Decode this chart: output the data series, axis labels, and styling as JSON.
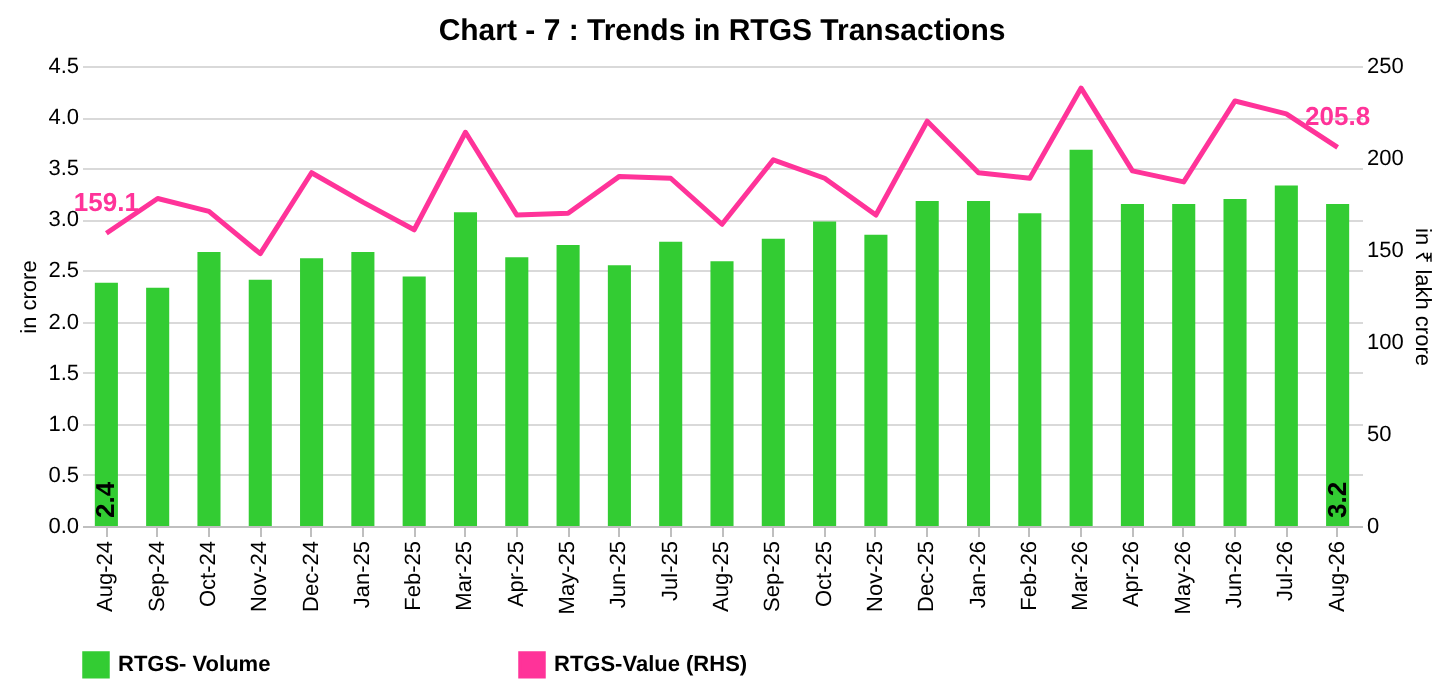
{
  "chart_data": {
    "type": "bar",
    "title": "Chart - 7 : Trends in RTGS Transactions",
    "ylabel": "in crore",
    "y2label": "in ₹ lakh crore",
    "categories": [
      "Aug-24",
      "Sep-24",
      "Oct-24",
      "Nov-24",
      "Dec-24",
      "Jan-25",
      "Feb-25",
      "Mar-25",
      "Apr-25",
      "May-25",
      "Jun-25",
      "Jul-25",
      "Aug-25",
      "Sep-25",
      "Oct-25",
      "Nov-25",
      "Dec-25",
      "Jan-26",
      "Feb-26",
      "Mar-26",
      "Apr-26",
      "May-26",
      "Jun-26",
      "Jul-26",
      "Aug-26"
    ],
    "series": [
      {
        "name": "RTGS- Volume",
        "color": "#33cc33",
        "values": [
          2.38,
          2.33,
          2.68,
          2.41,
          2.62,
          2.68,
          2.44,
          3.07,
          2.63,
          2.75,
          2.55,
          2.78,
          2.59,
          2.81,
          2.98,
          2.85,
          3.18,
          3.18,
          3.06,
          3.68,
          3.15,
          3.15,
          3.2,
          3.33,
          3.15
        ],
        "value_labels": [
          "2.4",
          null,
          null,
          null,
          null,
          null,
          null,
          null,
          null,
          null,
          null,
          null,
          null,
          null,
          null,
          null,
          null,
          null,
          null,
          null,
          null,
          null,
          null,
          null,
          "3.2"
        ]
      },
      {
        "name": "RTGS-Value (RHS)",
        "type": "line",
        "axis": "y2",
        "color": "#ff3399",
        "values": [
          159.1,
          178,
          171,
          148,
          192,
          176,
          161,
          214,
          169,
          170,
          190,
          189,
          164,
          199,
          189,
          169,
          220,
          192,
          189,
          238,
          193,
          187,
          231,
          224,
          205.8
        ],
        "value_labels": [
          "159.1",
          null,
          null,
          null,
          null,
          null,
          null,
          null,
          null,
          null,
          null,
          null,
          null,
          null,
          null,
          null,
          null,
          null,
          null,
          null,
          null,
          null,
          null,
          null,
          "205.8"
        ]
      }
    ],
    "ylim": [
      0,
      4.5
    ],
    "yticks": [
      {
        "value": 0,
        "label": "0.0"
      },
      {
        "value": 0.5,
        "label": "0.5"
      },
      {
        "value": 1,
        "label": "1.0"
      },
      {
        "value": 1.5,
        "label": "1.5"
      },
      {
        "value": 2,
        "label": "2.0"
      },
      {
        "value": 2.5,
        "label": "2.5"
      },
      {
        "value": 3,
        "label": "3.0"
      },
      {
        "value": 3.5,
        "label": "3.5"
      },
      {
        "value": 4,
        "label": "4.0"
      },
      {
        "value": 4.5,
        "label": "4.5"
      }
    ],
    "y2lim": [
      0,
      250
    ],
    "y2ticks": [
      0,
      50,
      100,
      150,
      200,
      250
    ],
    "grid": "y",
    "legend": "bottom",
    "line_style": "solid",
    "marker": "none"
  }
}
